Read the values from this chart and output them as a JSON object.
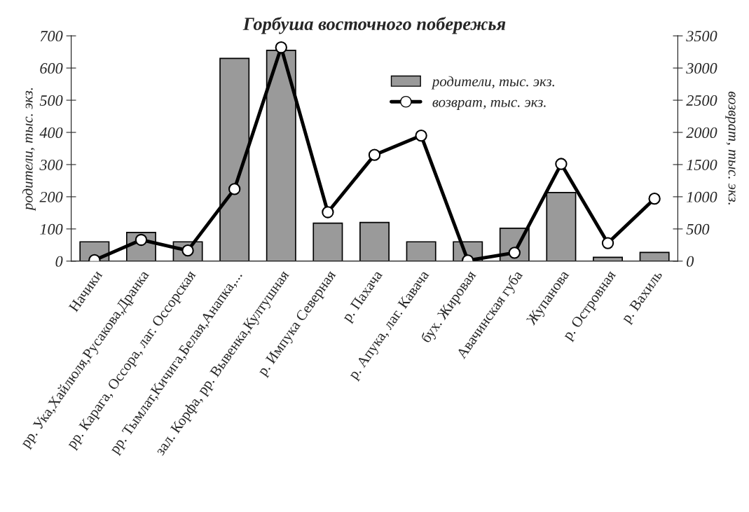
{
  "chart_data": {
    "type": "bar",
    "title": "Горбуша восточного побережья",
    "ylabel": "родители, тыс. экз.",
    "y2label": "возврат, тыс. экз.",
    "categories": [
      "Начики",
      "рр. Ука,Хайлюля,Русакова,Дранка",
      "рр. Карага, Оссора, лаг. Оссорская",
      "рр. Тымлат,Кичига,Белая,Анапка,...",
      "зал. Корфа, рр. Вывенка,Култушная",
      "р. Импука Северная",
      "р. Пахача",
      "р. Апука, лаг. Кавача",
      "бух. Жировая",
      "Авачинская губа",
      "Жупанова",
      "р. Островная",
      "р. Вахиль"
    ],
    "series": [
      {
        "name": "родители, тыс. экз.",
        "color": "#9a9a9a",
        "values": [
          60,
          89,
          60,
          630,
          655,
          118,
          120,
          60,
          60,
          102,
          213,
          12,
          27
        ]
      },
      {
        "name": "возврат, тыс. экз.",
        "type": "line",
        "axis": "y2",
        "color": "#000000",
        "marker": "circle",
        "values": [
          15,
          330,
          165,
          1120,
          3320,
          760,
          1650,
          1950,
          10,
          130,
          1510,
          280,
          970
        ]
      }
    ],
    "ylim": [
      0,
      700
    ],
    "yticks": [
      0,
      100,
      200,
      300,
      400,
      500,
      600,
      700
    ],
    "y2lim": [
      0,
      3500
    ],
    "y2ticks": [
      0,
      500,
      1000,
      1500,
      2000,
      2500,
      3000,
      3500
    ],
    "grid": false,
    "legend": "top right"
  }
}
